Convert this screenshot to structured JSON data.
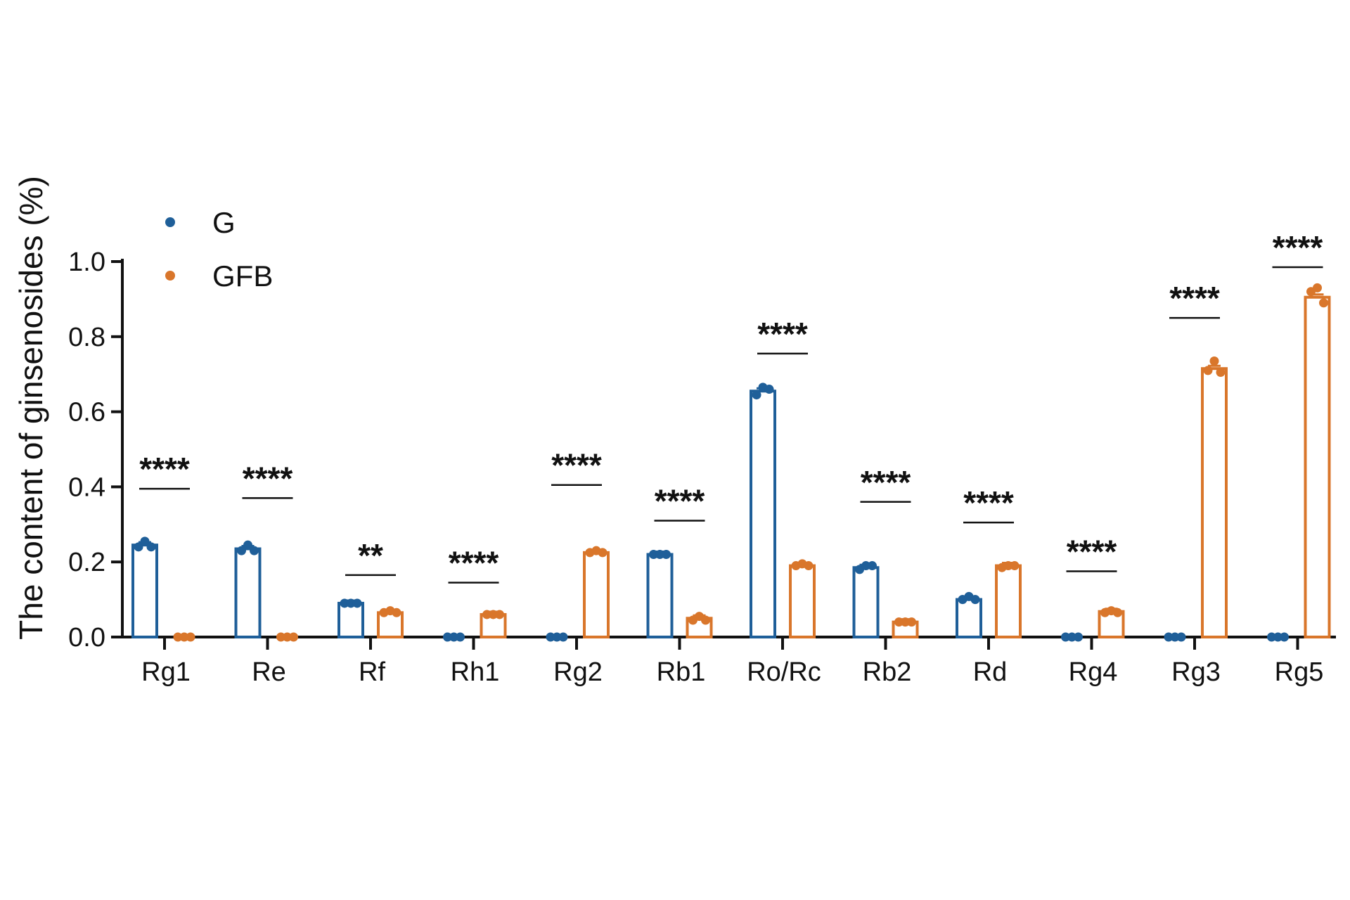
{
  "chart_data": {
    "type": "bar",
    "ylabel": "The content of ginsenosides (%)",
    "ylim": [
      0,
      1.0
    ],
    "yticks": [
      "0.0",
      "0.2",
      "0.4",
      "0.6",
      "0.8",
      "1.0"
    ],
    "categories": [
      "Rg1",
      "Re",
      "Rf",
      "Rh1",
      "Rg2",
      "Rb1",
      "Ro/Rc",
      "Rb2",
      "Rd",
      "Rg4",
      "Rg3",
      "Rg5"
    ],
    "series": [
      {
        "name": "G",
        "color": "#1f5f99",
        "values": [
          0.245,
          0.235,
          0.09,
          0.0,
          0.0,
          0.22,
          0.655,
          0.185,
          0.1,
          0.0,
          0.0,
          0.0
        ],
        "points": [
          [
            0.24,
            0.255,
            0.24
          ],
          [
            0.23,
            0.245,
            0.23
          ],
          [
            0.09,
            0.09,
            0.09
          ],
          [
            0,
            0,
            0
          ],
          [
            0,
            0,
            0
          ],
          [
            0.22,
            0.22,
            0.22
          ],
          [
            0.645,
            0.665,
            0.66
          ],
          [
            0.18,
            0.19,
            0.19
          ],
          [
            0.1,
            0.108,
            0.1
          ],
          [
            0,
            0,
            0
          ],
          [
            0,
            0,
            0
          ],
          [
            0,
            0,
            0
          ]
        ]
      },
      {
        "name": "GFB",
        "color": "#d9762b",
        "values": [
          0.0,
          0.0,
          0.065,
          0.06,
          0.225,
          0.05,
          0.19,
          0.04,
          0.19,
          0.068,
          0.715,
          0.905
        ],
        "points": [
          [
            0,
            0,
            0
          ],
          [
            0,
            0,
            0
          ],
          [
            0.065,
            0.07,
            0.065
          ],
          [
            0.06,
            0.06,
            0.06
          ],
          [
            0.225,
            0.23,
            0.225
          ],
          [
            0.045,
            0.055,
            0.045
          ],
          [
            0.19,
            0.195,
            0.19
          ],
          [
            0.04,
            0.04,
            0.04
          ],
          [
            0.185,
            0.19,
            0.19
          ],
          [
            0.065,
            0.07,
            0.065
          ],
          [
            0.71,
            0.735,
            0.705
          ],
          [
            0.92,
            0.93,
            0.89
          ]
        ]
      }
    ],
    "significance": [
      {
        "label": "****",
        "y": 0.395
      },
      {
        "label": "****",
        "y": 0.37
      },
      {
        "label": "**",
        "y": 0.165
      },
      {
        "label": "****",
        "y": 0.145
      },
      {
        "label": "****",
        "y": 0.405
      },
      {
        "label": "****",
        "y": 0.31
      },
      {
        "label": "****",
        "y": 0.755
      },
      {
        "label": "****",
        "y": 0.36
      },
      {
        "label": "****",
        "y": 0.305
      },
      {
        "label": "****",
        "y": 0.175
      },
      {
        "label": "****",
        "y": 0.85
      },
      {
        "label": "****",
        "y": 0.985
      }
    ],
    "legend": {
      "position": "top-left",
      "entries": [
        {
          "label": "G",
          "color": "#1f5f99"
        },
        {
          "label": "GFB",
          "color": "#d9762b"
        }
      ]
    }
  }
}
